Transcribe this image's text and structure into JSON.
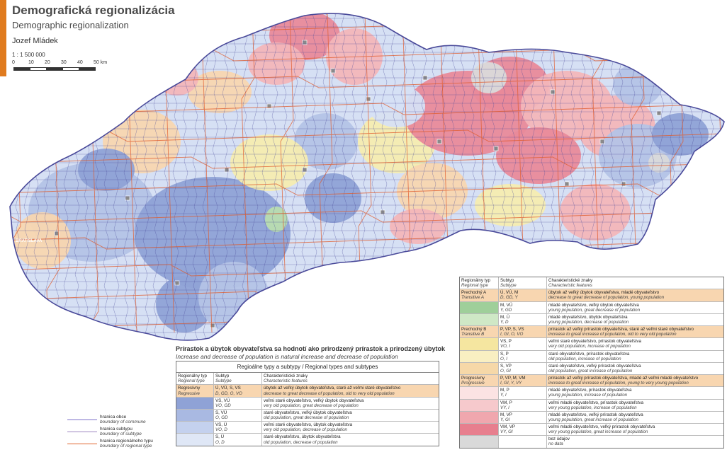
{
  "header": {
    "title": "Demografická regionalizácia",
    "subtitle": "Demographic regionalization",
    "author": "Jozef Mládek",
    "scale": "1 : 1 500 000",
    "scale_ticks": [
      "0",
      "10",
      "20",
      "30",
      "40",
      "50 km"
    ],
    "accent_color": "#e07b1e"
  },
  "map": {
    "capital_label": "BRATISLAVA",
    "colors": {
      "outline": "#4a4a9a",
      "district": "#e05a2a",
      "blue_dark": "#8fa2d6",
      "blue": "#b4c3e6",
      "blue_light": "#d6e0f4",
      "pink_dark": "#e98a9a",
      "pink": "#f3b6b9",
      "peach": "#f8d6b0",
      "yellow": "#f6ecb0",
      "green": "#b8dcb0",
      "gray": "#dadada"
    }
  },
  "caption": {
    "sk": "Prírastok a úbytok obyvateľstva sa hodnotí ako prirodzený prírastok a prirodzený úbytok",
    "en": "Increase and decrease of population is natural increase and decrease of population"
  },
  "legend_left": {
    "title": "Regioálne typy a subtypy / Regional types and subtypes",
    "headers": {
      "type": "Regionálny typ",
      "type_en": "Regional type",
      "subtype": "Subtyp",
      "subtype_en": "Subtype",
      "features": "Charakteristické znaky",
      "features_en": "Characteristic features"
    },
    "rows": [
      {
        "type": "Regresívny",
        "type_en": "Regressive",
        "subtype": "Ú, VÚ, S, VS",
        "subtype_en": "D, GD, O, VO",
        "features": "úbytok až veľký úbytok obyvateľstva, staré až veľmi staré obyvateľstvo",
        "features_en": "decrease to great decrease of population, old to very old population",
        "color": "#f8d6b0"
      },
      {
        "type": "",
        "type_en": "",
        "subtype": "VS, VÚ",
        "subtype_en": "VO, GD",
        "features": "veľmi staré obyvateľstvo, veľký úbytok obyvateľstva",
        "features_en": "very old population, great decrease of population",
        "color": "#8fa2d6"
      },
      {
        "type": "",
        "type_en": "",
        "subtype": "S, VÚ",
        "subtype_en": "O, GD",
        "features": "staré obyvateľstvo, veľký úbytok obyvateľstva",
        "features_en": "old population, great decrease of population",
        "color": "#a9b9e2"
      },
      {
        "type": "",
        "type_en": "",
        "subtype": "VS, Ú",
        "subtype_en": "VO, D",
        "features": "veľmi staré obyvateľstvo, úbytok obyvateľstva",
        "features_en": "very old population, decrease of population",
        "color": "#c4d1ee"
      },
      {
        "type": "",
        "type_en": "",
        "subtype": "S, Ú",
        "subtype_en": "O, D",
        "features": "staré obyvateľstvo, úbytok obyvateľstva",
        "features_en": "old population, decrease of population",
        "color": "#dfe7f6"
      }
    ]
  },
  "legend_right": {
    "headers": {
      "type": "Regionálny typ",
      "type_en": "Regional type",
      "subtype": "Subtyp",
      "subtype_en": "Subtype",
      "features": "Charakteristické znaky",
      "features_en": "Characteristic features"
    },
    "rows": [
      {
        "type": "Prechodný A",
        "type_en": "Transitive A",
        "subtype": "Ú, VÚ, M",
        "subtype_en": "D, GD, Y",
        "features": "úbytok až veľký úbytok obyvateľstva, mladé obyvateľstvo",
        "features_en": "decrease to great decrease of population, young population",
        "color": "#f8d6b0"
      },
      {
        "type": "",
        "type_en": "",
        "subtype": "M, VÚ",
        "subtype_en": "Y, GD",
        "features": "mladé obyvateľstvo, veľký úbytok obyvateľstva",
        "features_en": "young population, great decrease of population",
        "color": "#9fcf9a"
      },
      {
        "type": "",
        "type_en": "",
        "subtype": "M, Ú",
        "subtype_en": "Y, D",
        "features": "mladé obyvateľstvo, úbytok obyvateľstva",
        "features_en": "young population, decrease of population",
        "color": "#cfe8c6"
      },
      {
        "type": "Prechodný B",
        "type_en": "Transitive B",
        "subtype": "P, VP, S, VS",
        "subtype_en": "I, GI, O, VO",
        "features": "prírastok až veľký prírastok obyvateľstva, staré až veľmi staré obyvateľstvo",
        "features_en": "increase to great increase of population, old to very old population",
        "color": "#f8d6b0"
      },
      {
        "type": "",
        "type_en": "",
        "subtype": "VS, P",
        "subtype_en": "VO, I",
        "features": "veľmi staré obyvateľstvo, prírastok obyvateľstva",
        "features_en": "very old population, increase of population",
        "color": "#f5e6a0"
      },
      {
        "type": "",
        "type_en": "",
        "subtype": "S, P",
        "subtype_en": "O, I",
        "features": "staré obyvateľstvo, prírastok obyvateľstva",
        "features_en": "old population, increase of population",
        "color": "#f9efc2"
      },
      {
        "type": "",
        "type_en": "",
        "subtype": "S, VP",
        "subtype_en": "O, GI",
        "features": "staré obyvateľstvo, veľký prírastok obyvateľstva",
        "features_en": "old population, great increase of population",
        "color": "#f6d8a8"
      },
      {
        "type": "Progresívny",
        "type_en": "Progressive",
        "subtype": "P, VP, M, VM",
        "subtype_en": "I, GI, Y, VY",
        "features": "prírastok až veľký prírastok obyvateľstva, mladé až veľmi mladé obyvateľstvo",
        "features_en": "increase to great increase of population, young to very young population",
        "color": "#f8d6b0"
      },
      {
        "type": "",
        "type_en": "",
        "subtype": "M, P",
        "subtype_en": "Y, I",
        "features": "mladé obyvateľstvo, prírastok obyvateľstva",
        "features_en": "young population, increase of population",
        "color": "#fbe3e3"
      },
      {
        "type": "",
        "type_en": "",
        "subtype": "VM, P",
        "subtype_en": "VY, I",
        "features": "veľmi mladé obyvateľstvo, prírastok obyvateľstva",
        "features_en": "very young population, increase of population",
        "color": "#f6c9cc"
      },
      {
        "type": "",
        "type_en": "",
        "subtype": "M, VP",
        "subtype_en": "Y, GI",
        "features": "mladé obyvateľstvo, veľký prírastok obyvateľstva",
        "features_en": "young population, great increase of population",
        "color": "#f0a7ae"
      },
      {
        "type": "",
        "type_en": "",
        "subtype": "VM, VP",
        "subtype_en": "VY, GI",
        "features": "veľmi mladé obyvateľstvo, veľký prírastok obyvateľstva",
        "features_en": "very young population, great increase of population",
        "color": "#e77f8e"
      },
      {
        "type": "",
        "type_en": "",
        "subtype": "",
        "subtype_en": "",
        "features": "bez údajov",
        "features_en": "no data",
        "color": "#d9d9d9"
      }
    ]
  },
  "boundaries": [
    {
      "label": "hranica obce",
      "label_en": "boundary of commune",
      "color": "#7b6fc8",
      "width": 1
    },
    {
      "label": "hranica subtypu",
      "label_en": "boundary of subtype",
      "color": "#9b84c0",
      "width": 1.5
    },
    {
      "label": "hranica regionálneho typu",
      "label_en": "boundary of regional type",
      "color": "#e0642c",
      "width": 1.5
    }
  ]
}
